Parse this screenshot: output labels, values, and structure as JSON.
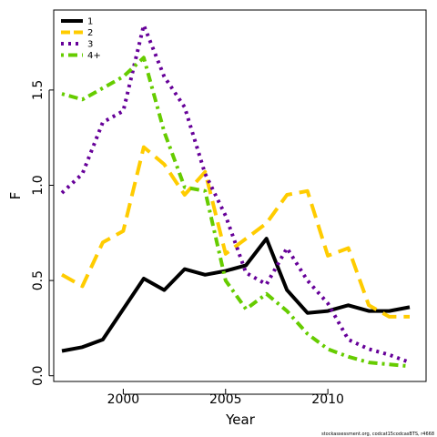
{
  "chart_data": {
    "type": "line",
    "xlabel": "Year",
    "ylabel": "F",
    "xlim": [
      1996.6,
      2014.8
    ],
    "ylim": [
      -0.03,
      1.92
    ],
    "x_ticks": [
      2000,
      2005,
      2010
    ],
    "y_ticks": [
      0.0,
      0.5,
      1.0,
      1.5
    ],
    "x_tick_labels": [
      "2000",
      "2005",
      "2010"
    ],
    "y_tick_labels": [
      "0.0",
      "0.5",
      "1.0",
      "1.5"
    ],
    "grid": false,
    "legend_position": "top-left",
    "x": [
      1997,
      1998,
      1999,
      2000,
      2001,
      2002,
      2003,
      2004,
      2005,
      2006,
      2007,
      2008,
      2009,
      2010,
      2011,
      2012,
      2013,
      2014
    ],
    "series": [
      {
        "name": "1",
        "color": "#000000",
        "dash": "solid",
        "values": [
          0.13,
          0.15,
          0.19,
          0.35,
          0.51,
          0.45,
          0.56,
          0.53,
          0.55,
          0.58,
          0.72,
          0.45,
          0.33,
          0.34,
          0.37,
          0.34,
          0.34,
          0.36
        ]
      },
      {
        "name": "2",
        "color": "#ffcc00",
        "dash": "long-dash",
        "values": [
          0.53,
          0.47,
          0.7,
          0.76,
          1.2,
          1.11,
          0.95,
          1.07,
          0.64,
          0.72,
          0.8,
          0.95,
          0.97,
          0.63,
          0.67,
          0.37,
          0.31,
          0.31
        ]
      },
      {
        "name": "3",
        "color": "#660099",
        "dash": "dotted",
        "values": [
          0.96,
          1.06,
          1.33,
          1.39,
          1.84,
          1.57,
          1.41,
          1.06,
          0.84,
          0.54,
          0.48,
          0.67,
          0.5,
          0.38,
          0.19,
          0.14,
          0.11,
          0.07
        ]
      },
      {
        "name": "4+",
        "color": "#66cc00",
        "dash": "dot-dash",
        "values": [
          1.48,
          1.45,
          1.51,
          1.57,
          1.67,
          1.28,
          0.99,
          0.97,
          0.5,
          0.35,
          0.43,
          0.34,
          0.22,
          0.14,
          0.1,
          0.07,
          0.06,
          0.05
        ]
      }
    ]
  },
  "credit": "stockassessment.org, codcat15codcasBTS, r4668"
}
